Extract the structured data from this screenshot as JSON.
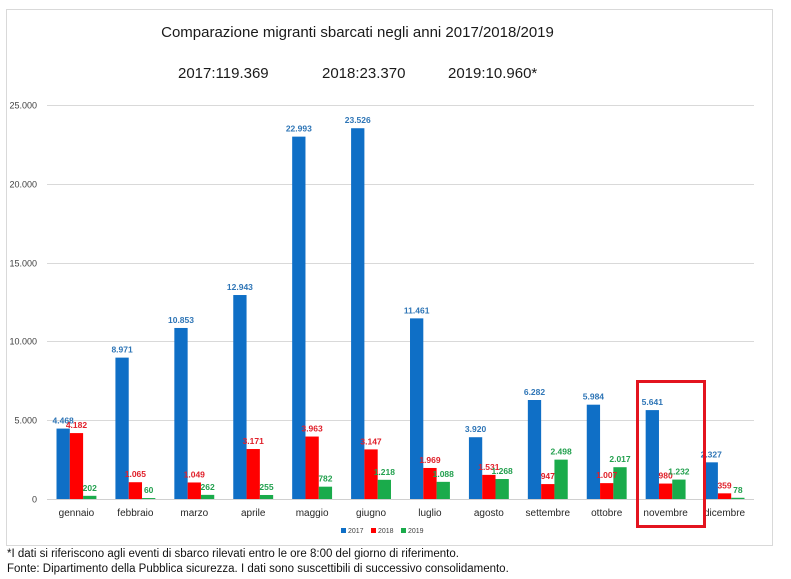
{
  "chart_data": {
    "type": "bar",
    "title": "Comparazione migranti sbarcati negli anni 2017/2018/2019",
    "totals": [
      {
        "label": "2017:119.369",
        "year": "2017",
        "value": 119369
      },
      {
        "label": "2018:23.370",
        "year": "2018",
        "value": 23370
      },
      {
        "label": "2019:10.960*",
        "year": "2019",
        "value": 10960
      }
    ],
    "xlabel": "",
    "ylabel": "",
    "ylim": [
      0,
      25000
    ],
    "yticks": [
      0,
      5000,
      10000,
      15000,
      20000,
      25000
    ],
    "ytick_labels": [
      "0",
      "5.000",
      "10.000",
      "15.000",
      "20.000",
      "25.000"
    ],
    "grid": true,
    "legend_position": "bottom",
    "categories": [
      "gennaio",
      "febbraio",
      "marzo",
      "aprile",
      "maggio",
      "giugno",
      "luglio",
      "agosto",
      "settembre",
      "ottobre",
      "novembre",
      "dicembre"
    ],
    "series": [
      {
        "name": "2017",
        "color": "#0f6fc6",
        "values": [
          4468,
          8971,
          10853,
          12943,
          22993,
          23526,
          11461,
          3920,
          6282,
          5984,
          5641,
          2327
        ],
        "labels": [
          "4.468",
          "8.971",
          "10.853",
          "12.943",
          "22.993",
          "23.526",
          "11.461",
          "3.920",
          "6.282",
          "5.984",
          "5.641",
          "2.327"
        ],
        "label_color": "#2e75b6"
      },
      {
        "name": "2018",
        "color": "#ff0000",
        "values": [
          4182,
          1065,
          1049,
          3171,
          3963,
          3147,
          1969,
          1531,
          947,
          1007,
          980,
          359
        ],
        "labels": [
          "4.182",
          "1.065",
          "1.049",
          "3.171",
          "3.963",
          "3.147",
          "1.969",
          "1.531",
          "947",
          "1.007",
          "980",
          "359"
        ],
        "label_color": "#e0202a"
      },
      {
        "name": "2019",
        "color": "#1aab4b",
        "values": [
          202,
          60,
          262,
          255,
          782,
          1218,
          1088,
          1268,
          2498,
          2017,
          1232,
          78
        ],
        "labels": [
          "202",
          "60",
          "262",
          "255",
          "782",
          "1.218",
          "1.088",
          "1.268",
          "2.498",
          "2.017",
          "1.232",
          "78"
        ],
        "label_color": "#22a04e"
      }
    ],
    "highlight": {
      "category": "novembre",
      "color": "#e3141f"
    }
  },
  "footnotes": {
    "note": "*I dati si riferiscono agli eventi di sbarco rilevati entro le ore 8:00 del giorno di riferimento.",
    "source": "Fonte: Dipartimento della Pubblica sicurezza. I dati sono suscettibili di successivo consolidamento."
  }
}
